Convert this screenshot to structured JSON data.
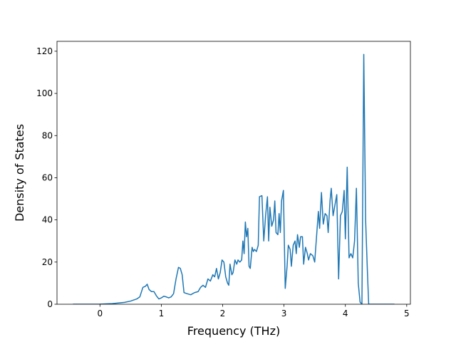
{
  "chart_data": {
    "type": "line",
    "xlabel": "Frequency (THz)",
    "ylabel": "Density of States",
    "xlim": [
      -0.7,
      5.06
    ],
    "ylim": [
      0,
      124.7
    ],
    "xticks": [
      0,
      1,
      2,
      3,
      4,
      5
    ],
    "yticks": [
      0,
      20,
      40,
      60,
      80,
      100,
      120
    ],
    "x": [
      -0.44,
      -0.2,
      0,
      0.2,
      0.4,
      0.5,
      0.6,
      0.65,
      0.7,
      0.74,
      0.77,
      0.8,
      0.84,
      0.88,
      0.92,
      0.96,
      1.0,
      1.04,
      1.08,
      1.12,
      1.16,
      1.2,
      1.24,
      1.28,
      1.31,
      1.34,
      1.37,
      1.42,
      1.48,
      1.54,
      1.6,
      1.64,
      1.68,
      1.72,
      1.76,
      1.8,
      1.84,
      1.87,
      1.9,
      1.93,
      1.96,
      1.99,
      2.02,
      2.05,
      2.08,
      2.1,
      2.12,
      2.15,
      2.17,
      2.2,
      2.23,
      2.25,
      2.28,
      2.31,
      2.33,
      2.35,
      2.37,
      2.39,
      2.41,
      2.43,
      2.45,
      2.48,
      2.5,
      2.52,
      2.55,
      2.58,
      2.6,
      2.64,
      2.67,
      2.7,
      2.73,
      2.75,
      2.77,
      2.8,
      2.83,
      2.85,
      2.87,
      2.9,
      2.92,
      2.94,
      2.96,
      2.99,
      3.02,
      3.05,
      3.07,
      3.1,
      3.12,
      3.15,
      3.18,
      3.2,
      3.22,
      3.25,
      3.27,
      3.3,
      3.32,
      3.35,
      3.38,
      3.4,
      3.43,
      3.47,
      3.5,
      3.53,
      3.56,
      3.58,
      3.61,
      3.64,
      3.67,
      3.7,
      3.72,
      3.75,
      3.77,
      3.8,
      3.83,
      3.86,
      3.89,
      3.92,
      3.95,
      3.98,
      4.0,
      4.03,
      4.06,
      4.09,
      4.12,
      4.15,
      4.18,
      4.21,
      4.24,
      4.27,
      4.3,
      4.33,
      4.36,
      4.38,
      4.5,
      4.8
    ],
    "series": [
      {
        "color": "#1f77b4",
        "values": [
          0,
          0,
          0.05,
          0.3,
          0.9,
          1.5,
          2.5,
          3.5,
          8,
          8.5,
          9.5,
          7,
          6,
          6,
          4,
          2.5,
          3,
          3.8,
          3.5,
          3,
          3.5,
          5,
          12,
          17.5,
          17,
          14,
          5.5,
          5,
          4.5,
          5.5,
          6,
          8,
          9,
          8,
          12,
          11,
          14,
          13,
          17,
          12,
          15,
          21,
          20,
          13,
          10,
          9,
          19,
          14,
          15,
          21,
          19,
          21,
          20,
          21,
          30,
          24,
          39,
          32,
          36,
          18,
          17,
          27,
          25,
          26,
          25,
          28,
          51,
          51.5,
          30,
          42,
          51,
          30,
          46,
          37,
          40,
          49,
          34,
          33,
          43,
          34,
          49,
          54,
          7.5,
          18,
          28,
          26,
          18,
          28,
          30,
          24,
          33,
          27,
          32,
          32,
          19,
          27,
          24,
          21,
          24,
          23,
          20,
          32,
          44,
          36,
          53,
          38,
          43,
          42,
          34,
          49,
          55,
          42,
          47,
          52,
          12,
          42,
          44,
          54,
          31,
          65,
          22,
          24,
          22,
          30,
          55,
          10,
          1,
          0,
          118.5,
          40,
          15,
          0,
          0,
          0
        ]
      }
    ]
  }
}
